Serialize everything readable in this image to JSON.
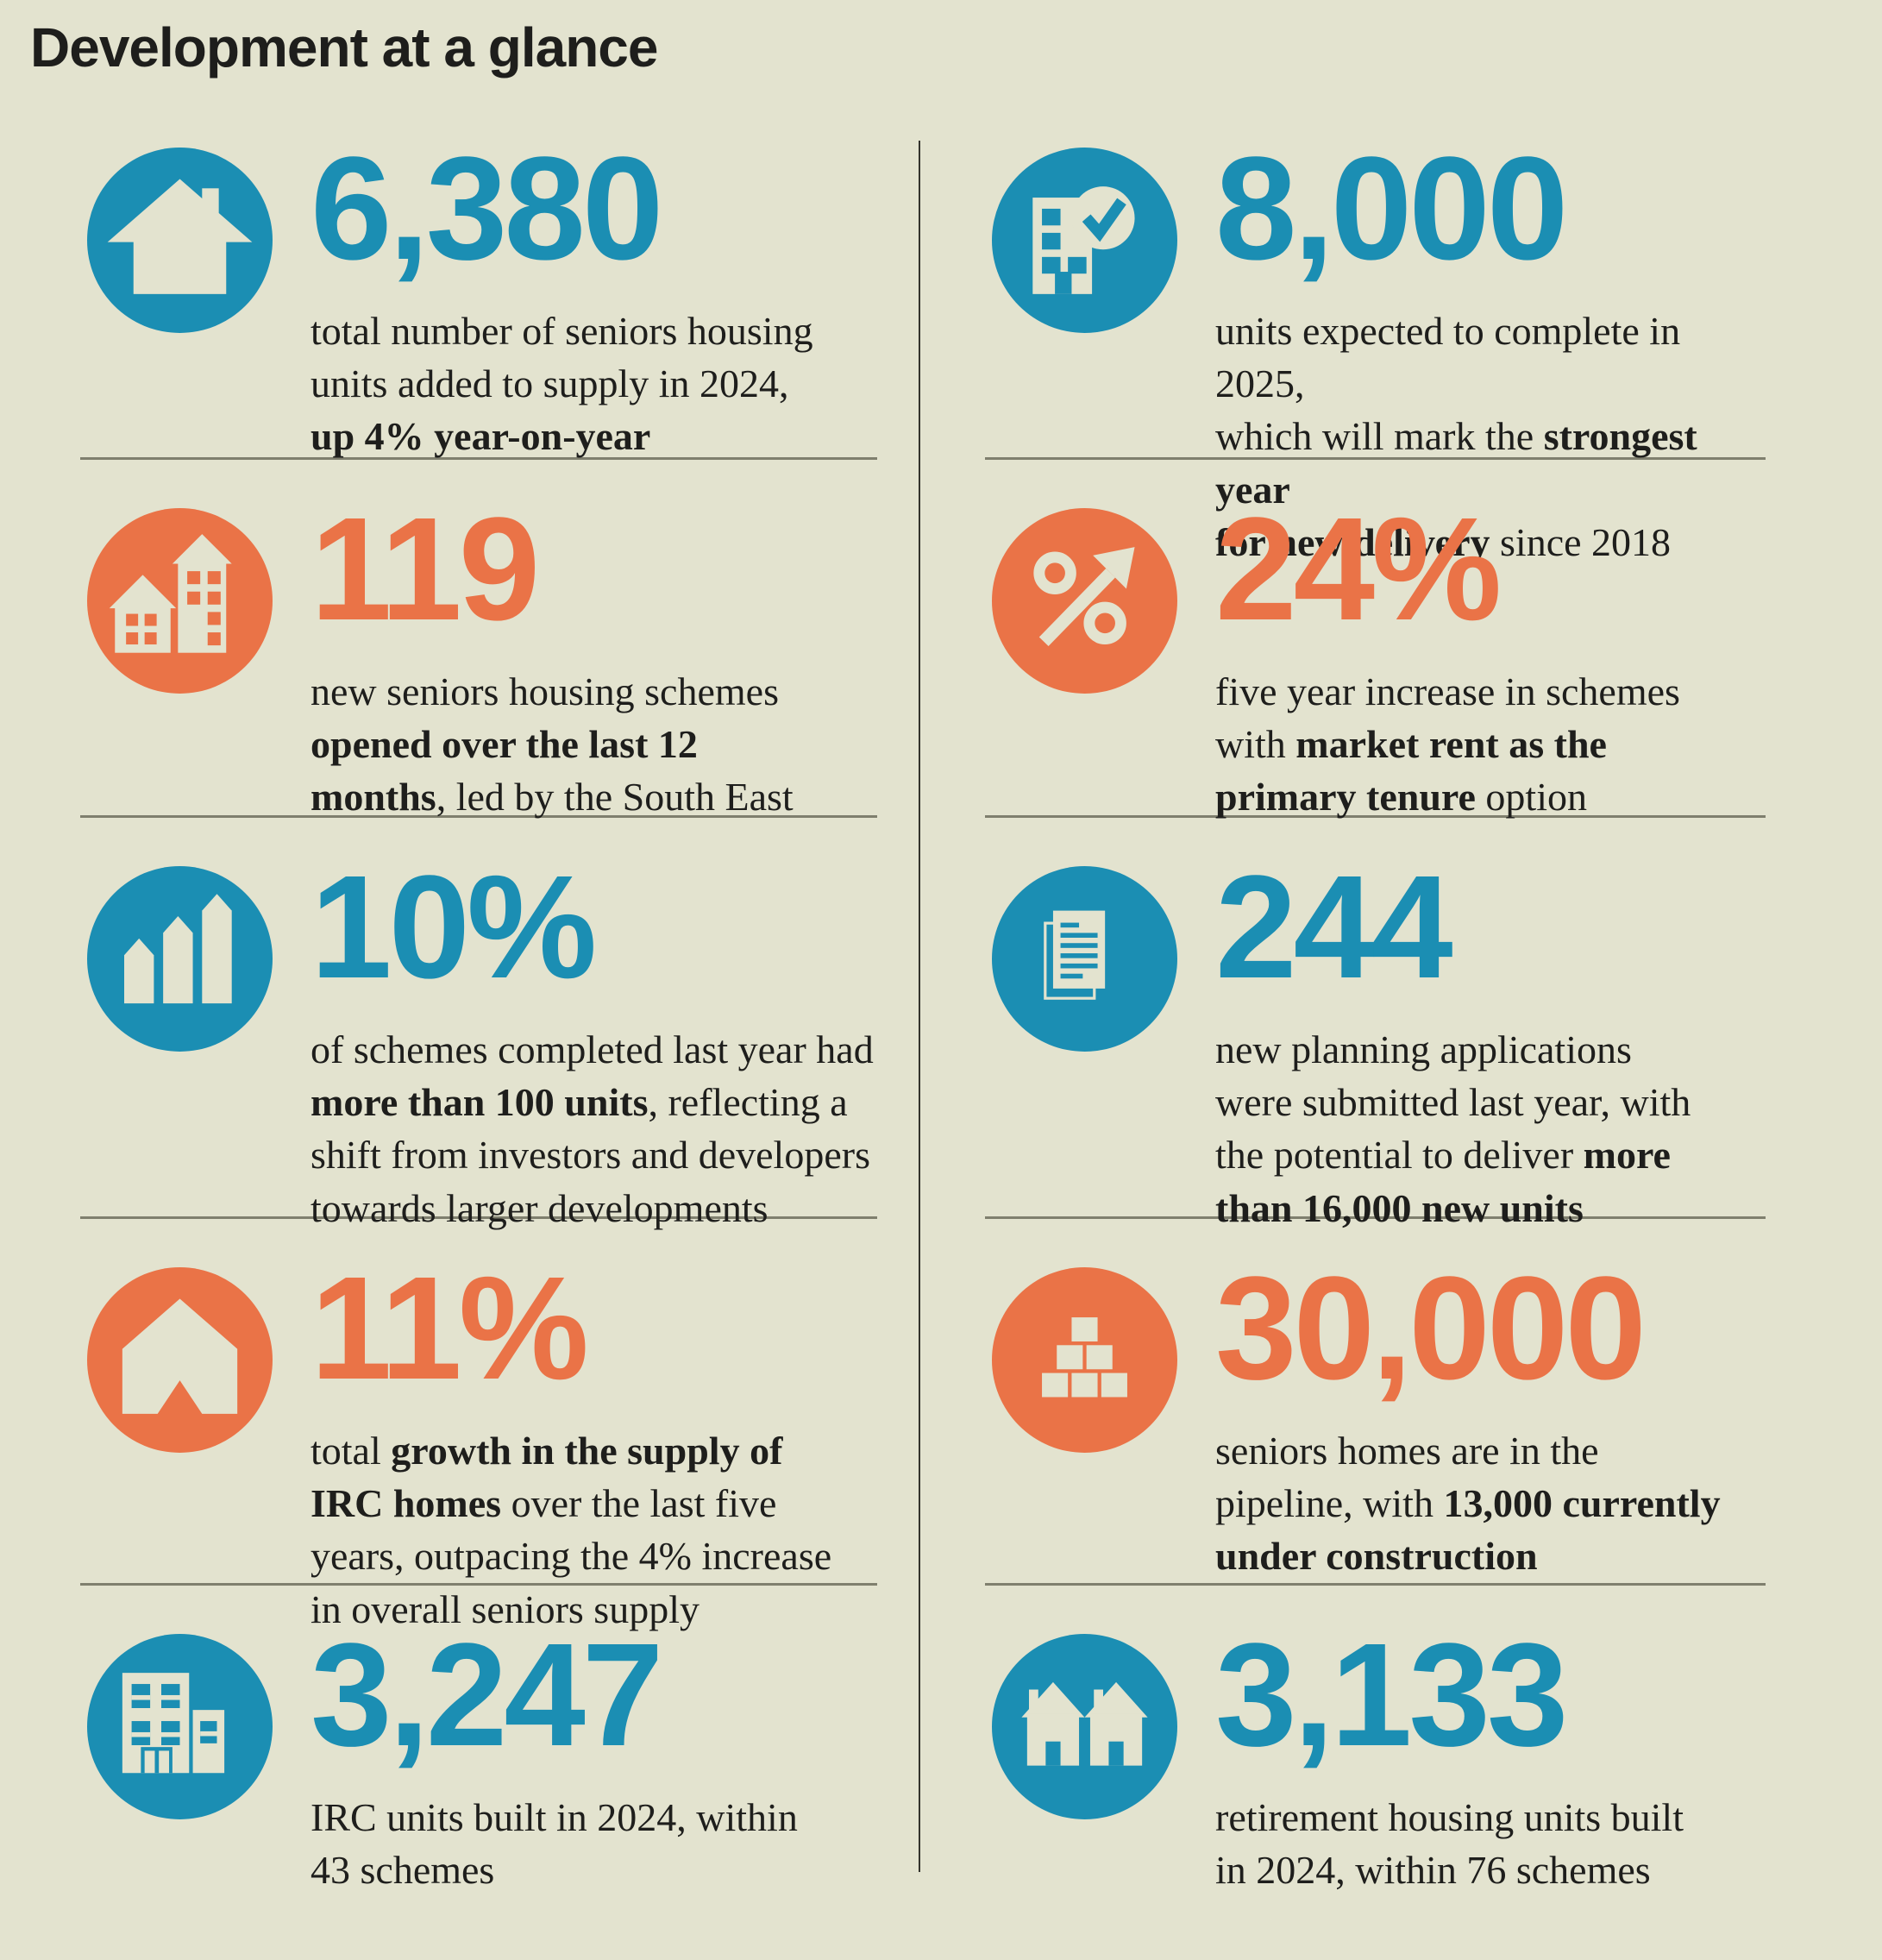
{
  "title": "Development at a glance",
  "colors": {
    "blue": "#1b8eb3",
    "orange": "#ea7347",
    "bg": "#e3e3cf",
    "text": "#1e1e1c",
    "divider": "#7f7f6e",
    "divider_dark": "#33332d"
  },
  "stats": {
    "left": [
      {
        "value": "6,380",
        "color": "blue",
        "icon": "house-icon",
        "desc": [
          {
            "t": "total number of seniors housing\nunits added to supply in 2024,\n"
          },
          {
            "t": "up 4% year-on-year",
            "b": true
          }
        ]
      },
      {
        "value": "119",
        "color": "orange",
        "icon": "apartment-buildings-icon",
        "desc": [
          {
            "t": "new seniors housing schemes\n"
          },
          {
            "t": "opened over the last 12\nmonths",
            "b": true
          },
          {
            "t": ", led by the South East"
          }
        ]
      },
      {
        "value": "10%",
        "color": "blue",
        "icon": "growth-bars-icon",
        "desc": [
          {
            "t": "of schemes completed last year had\n"
          },
          {
            "t": "more than 100 units",
            "b": true
          },
          {
            "t": ", reflecting a\nshift from investors and developers\ntowards larger developments"
          }
        ]
      },
      {
        "value": "11%",
        "color": "orange",
        "icon": "house-arrow-icon",
        "desc": [
          {
            "t": "total "
          },
          {
            "t": "growth in the supply of\nIRC homes",
            "b": true
          },
          {
            "t": " over the last five\nyears, outpacing the 4% increase\nin overall seniors supply"
          }
        ]
      },
      {
        "value": "3,247",
        "color": "blue",
        "icon": "irc-building-icon",
        "desc": [
          {
            "t": "IRC units built in 2024, within\n43 schemes"
          }
        ]
      }
    ],
    "right": [
      {
        "value": "8,000",
        "color": "blue",
        "icon": "building-check-icon",
        "desc": [
          {
            "t": "units expected to complete in 2025,\nwhich will mark the "
          },
          {
            "t": "strongest year\nfor new delivery",
            "b": true
          },
          {
            "t": " since 2018"
          }
        ]
      },
      {
        "value": "24%",
        "color": "orange",
        "icon": "percent-arrow-icon",
        "desc": [
          {
            "t": "five year increase in schemes\nwith "
          },
          {
            "t": "market rent as the\nprimary tenure",
            "b": true
          },
          {
            "t": " option"
          }
        ]
      },
      {
        "value": "244",
        "color": "blue",
        "icon": "planning-document-icon",
        "desc": [
          {
            "t": "new planning applications\nwere submitted last year, with\nthe potential to deliver "
          },
          {
            "t": "more\nthan 16,000 new units",
            "b": true
          }
        ]
      },
      {
        "value": "30,000",
        "color": "orange",
        "icon": "bricks-icon",
        "desc": [
          {
            "t": "seniors homes are in the\npipeline, with "
          },
          {
            "t": "13,000 currently\nunder construction",
            "b": true
          }
        ]
      },
      {
        "value": "3,133",
        "color": "blue",
        "icon": "two-houses-icon",
        "desc": [
          {
            "t": "retirement housing units built\nin 2024, within 76 schemes"
          }
        ]
      }
    ]
  }
}
